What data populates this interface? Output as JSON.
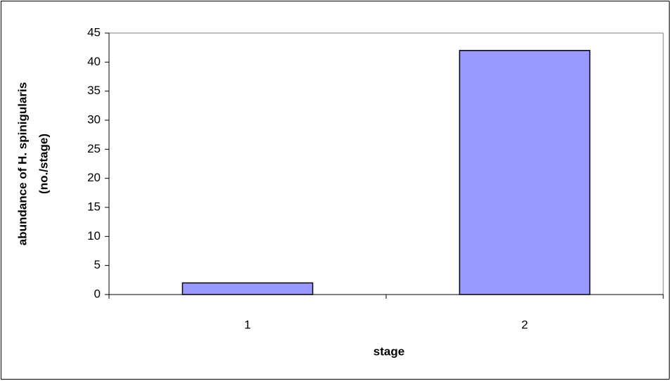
{
  "chart_data": {
    "type": "bar",
    "xlabel": "stage",
    "ylabel": [
      "abundance of H. spinigularis",
      "(no./stage)"
    ],
    "categories": [
      "1",
      "2"
    ],
    "values": [
      2,
      42
    ],
    "color": "#9999ff",
    "ylim": [
      0,
      45
    ],
    "yticks": [
      0,
      5,
      10,
      15,
      20,
      25,
      30,
      35,
      40,
      45
    ],
    "grid": false
  }
}
